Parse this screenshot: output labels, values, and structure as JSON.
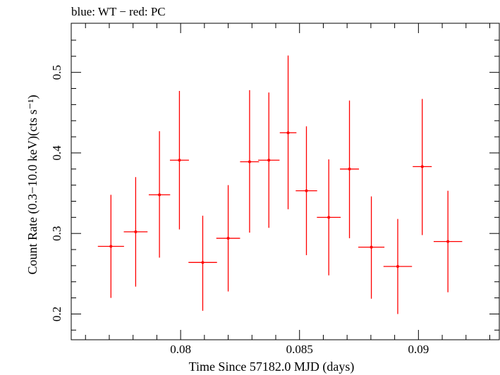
{
  "colors": {
    "WT": "#0000ff",
    "PC": "#ff0000",
    "axis": "#000000"
  },
  "chart_data": {
    "type": "scatter",
    "title": "blue: WT − red: PC",
    "xlabel": "Time Since 57182.0 MJD (days)",
    "ylabel": "Count Rate (0.3−10.0 keV)(cts s⁻¹)",
    "xlim": [
      0.0754,
      0.0934
    ],
    "ylim": [
      0.168,
      0.561
    ],
    "x_ticks": [
      0.08,
      0.085,
      0.09
    ],
    "x_tick_labels": [
      "0.08",
      "0.085",
      "0.09"
    ],
    "y_ticks": [
      0.2,
      0.3,
      0.4,
      0.5
    ],
    "y_tick_labels": [
      "0.2",
      "0.3",
      "0.4",
      "0.5"
    ],
    "grid": false,
    "series": [
      {
        "name": "PC",
        "color": "#ff0000",
        "points": [
          {
            "x": 0.07707,
            "y": 0.284,
            "xerr": 0.00055,
            "ylo": 0.22,
            "yhi": 0.348
          },
          {
            "x": 0.07811,
            "y": 0.302,
            "xerr": 0.0005,
            "ylo": 0.234,
            "yhi": 0.37
          },
          {
            "x": 0.07911,
            "y": 0.348,
            "xerr": 0.00045,
            "ylo": 0.27,
            "yhi": 0.427
          },
          {
            "x": 0.07995,
            "y": 0.391,
            "xerr": 0.0004,
            "ylo": 0.305,
            "yhi": 0.477
          },
          {
            "x": 0.08093,
            "y": 0.264,
            "xerr": 0.0006,
            "ylo": 0.204,
            "yhi": 0.322
          },
          {
            "x": 0.082,
            "y": 0.294,
            "xerr": 0.0005,
            "ylo": 0.228,
            "yhi": 0.36
          },
          {
            "x": 0.0829,
            "y": 0.389,
            "xerr": 0.0004,
            "ylo": 0.301,
            "yhi": 0.478
          },
          {
            "x": 0.08371,
            "y": 0.391,
            "xerr": 0.00045,
            "ylo": 0.307,
            "yhi": 0.475
          },
          {
            "x": 0.08452,
            "y": 0.425,
            "xerr": 0.00035,
            "ylo": 0.33,
            "yhi": 0.521
          },
          {
            "x": 0.08529,
            "y": 0.353,
            "xerr": 0.00045,
            "ylo": 0.273,
            "yhi": 0.433
          },
          {
            "x": 0.08623,
            "y": 0.32,
            "xerr": 0.0005,
            "ylo": 0.248,
            "yhi": 0.392
          },
          {
            "x": 0.0871,
            "y": 0.38,
            "xerr": 0.0004,
            "ylo": 0.294,
            "yhi": 0.465
          },
          {
            "x": 0.08802,
            "y": 0.283,
            "xerr": 0.00055,
            "ylo": 0.219,
            "yhi": 0.346
          },
          {
            "x": 0.08913,
            "y": 0.259,
            "xerr": 0.0006,
            "ylo": 0.2,
            "yhi": 0.318
          },
          {
            "x": 0.09016,
            "y": 0.383,
            "xerr": 0.0004,
            "ylo": 0.298,
            "yhi": 0.467
          },
          {
            "x": 0.09124,
            "y": 0.29,
            "xerr": 0.0006,
            "ylo": 0.227,
            "yhi": 0.353
          }
        ]
      }
    ]
  }
}
